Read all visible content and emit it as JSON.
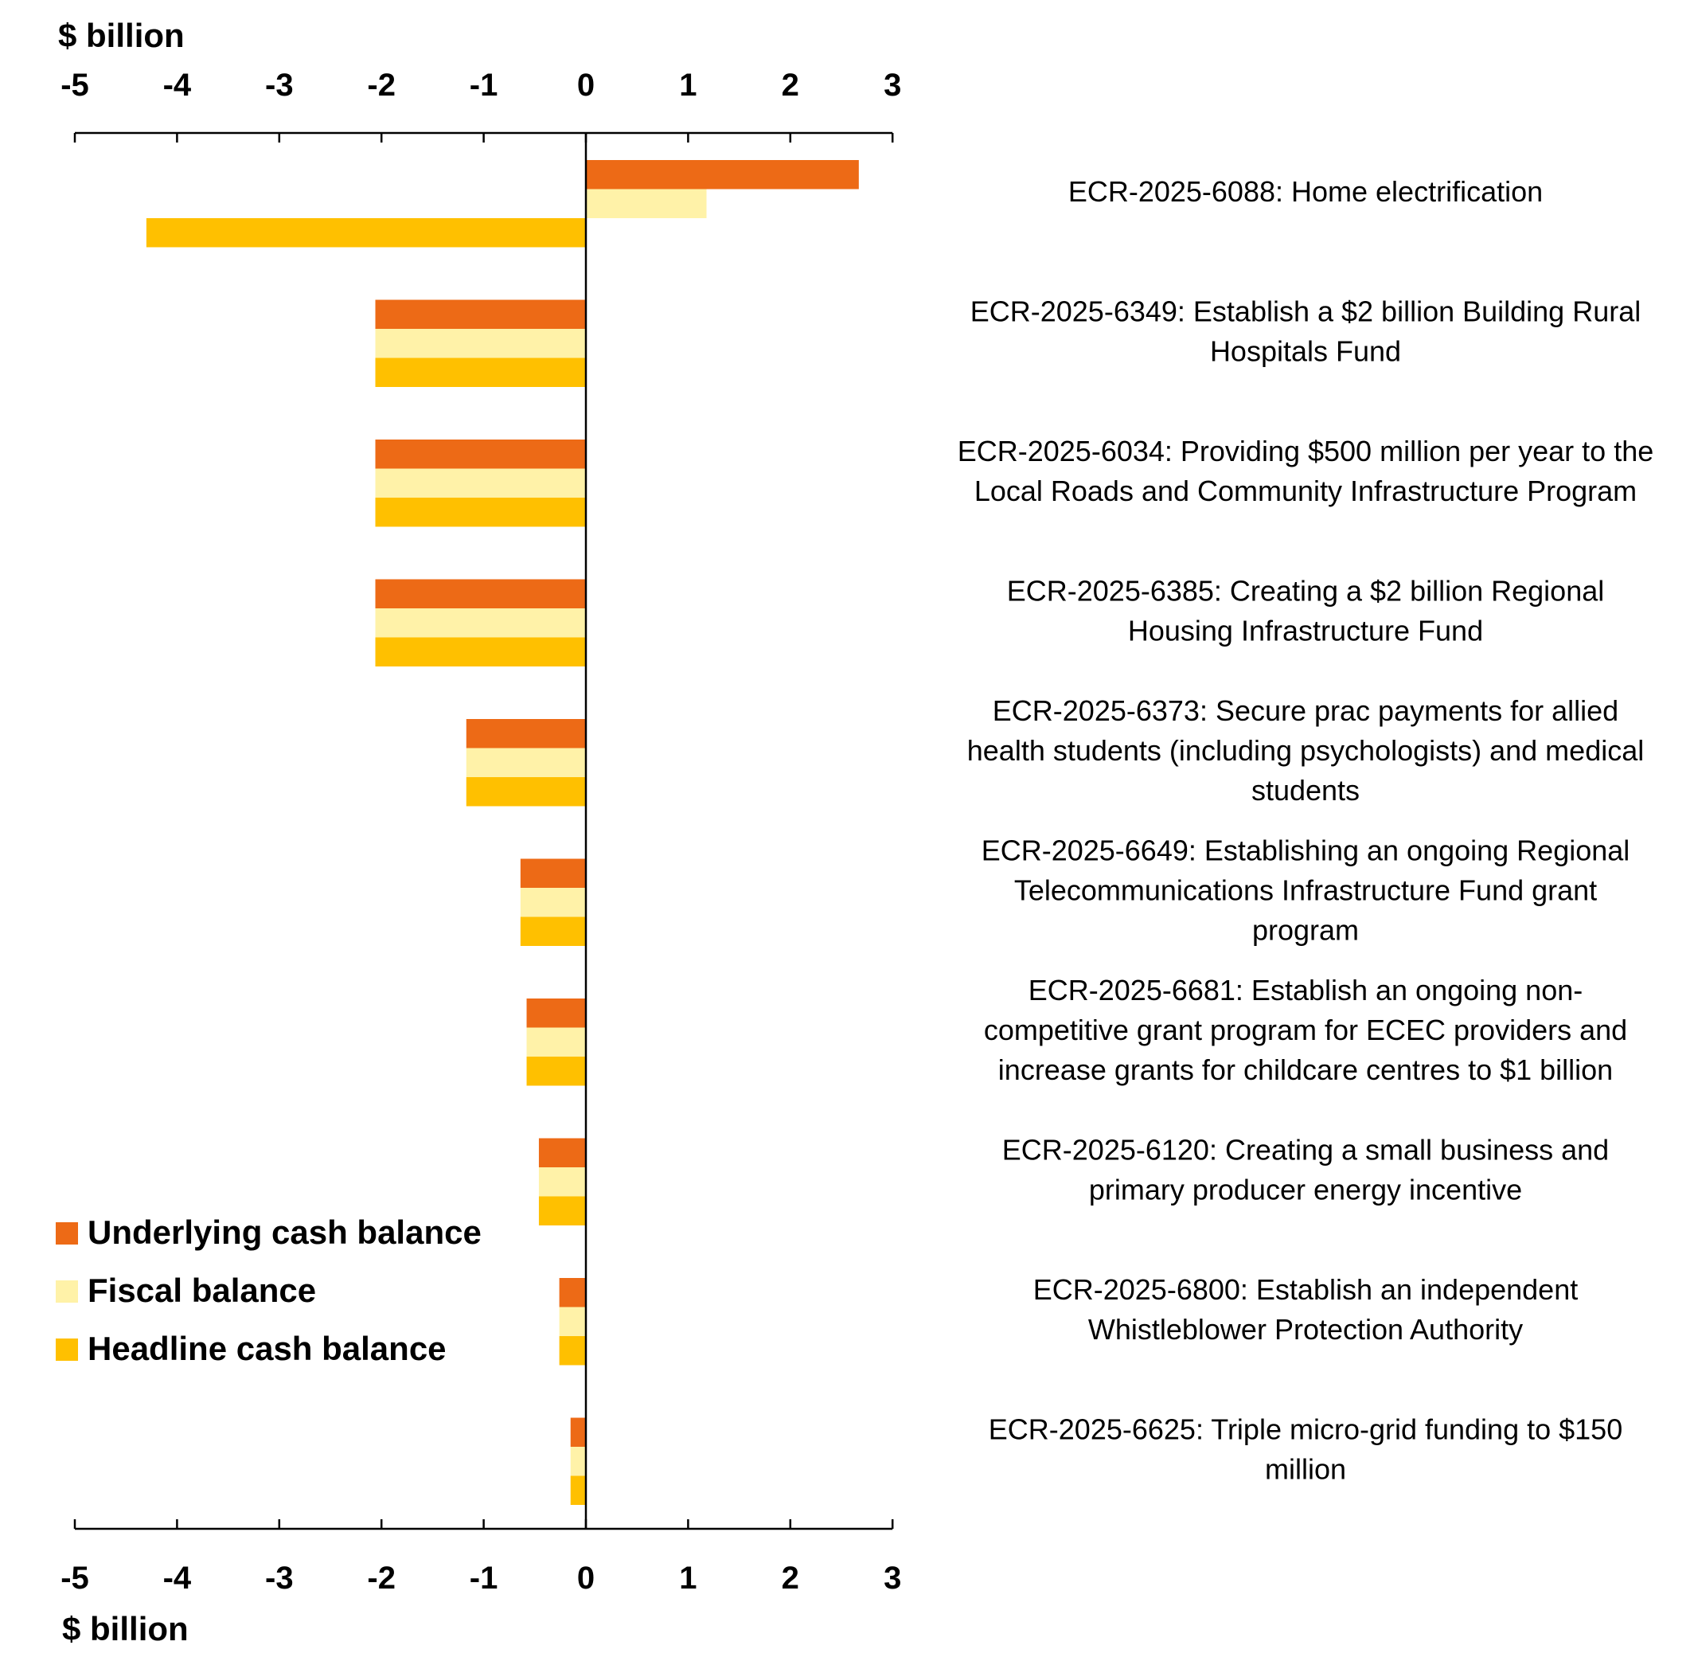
{
  "chart_data": {
    "type": "bar",
    "orientation": "horizontal",
    "xlabel_top": "$ billion",
    "xlabel_bottom": "$ billion",
    "xlim": [
      -5,
      3
    ],
    "xticks": [
      "-5",
      "-4",
      "-3",
      "-2",
      "-1",
      "0",
      "1",
      "2",
      "3"
    ],
    "legend_position": "bottom-left",
    "colors": {
      "Underlying cash balance": "#ED6A16",
      "Fiscal balance": "#FFF2A8",
      "Headline cash balance": "#FFC000"
    },
    "series": [
      {
        "name": "Underlying cash balance",
        "values": [
          2.67,
          -2.06,
          -2.06,
          -2.06,
          -1.17,
          -0.64,
          -0.58,
          -0.46,
          -0.26,
          -0.15
        ]
      },
      {
        "name": "Fiscal balance",
        "values": [
          1.18,
          -2.06,
          -2.06,
          -2.06,
          -1.17,
          -0.64,
          -0.58,
          -0.46,
          -0.26,
          -0.15
        ]
      },
      {
        "name": "Headline cash balance",
        "values": [
          -4.3,
          -2.06,
          -2.06,
          -2.06,
          -1.17,
          -0.64,
          -0.58,
          -0.46,
          -0.26,
          -0.15
        ]
      }
    ],
    "categories": [
      [
        "ECR-2025-6088:  Home electrification"
      ],
      [
        "ECR-2025-6349:  Establish a $2 billion Building Rural",
        "Hospitals Fund"
      ],
      [
        "ECR-2025-6034:  Providing $500 million per year to the",
        "Local Roads and Community Infrastructure Program"
      ],
      [
        "ECR-2025-6385:  Creating a $2 billion Regional",
        "Housing Infrastructure Fund"
      ],
      [
        "ECR-2025-6373:  Secure prac payments for allied",
        "health students (including psychologists) and medical",
        "students"
      ],
      [
        "ECR-2025-6649:  Establishing an ongoing Regional",
        "Telecommunications Infrastructure Fund grant",
        "program"
      ],
      [
        "ECR-2025-6681:  Establish an ongoing non-",
        "competitive grant program for ECEC providers and",
        "increase grants for childcare centres to $1 billion"
      ],
      [
        "ECR-2025-6120:  Creating a small business and",
        "primary producer energy incentive"
      ],
      [
        "ECR-2025-6800:  Establish an independent",
        "Whistleblower Protection Authority"
      ],
      [
        "ECR-2025-6625:  Triple micro-grid funding to $150",
        "million"
      ]
    ]
  }
}
